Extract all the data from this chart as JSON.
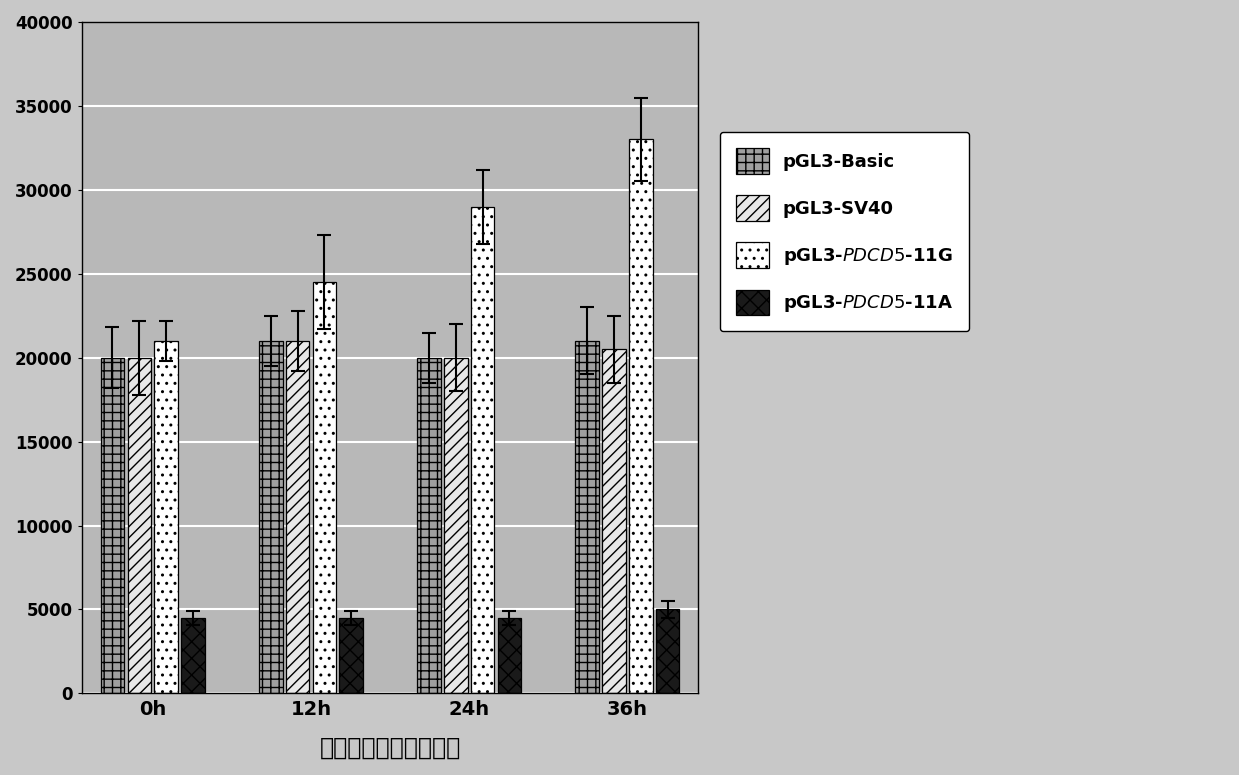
{
  "categories": [
    "0h",
    "12h",
    "24h",
    "36h"
  ],
  "series": [
    {
      "label": "pGL3-Basic",
      "values": [
        20000,
        21000,
        20000,
        21000
      ],
      "errors": [
        1800,
        1500,
        1500,
        2000
      ],
      "hatch": "++",
      "facecolor": "#a0a0a0",
      "edgecolor": "#000000"
    },
    {
      "label": "pGL3-SV40",
      "values": [
        20000,
        21000,
        20000,
        20500
      ],
      "errors": [
        2200,
        1800,
        2000,
        2000
      ],
      "hatch": "///",
      "facecolor": "#e8e8e8",
      "edgecolor": "#000000"
    },
    {
      "label": "pGL3-PDCD5-11G",
      "values": [
        21000,
        24500,
        29000,
        33000
      ],
      "errors": [
        1200,
        2800,
        2200,
        2500
      ],
      "hatch": "..",
      "facecolor": "#ffffff",
      "edgecolor": "#000000"
    },
    {
      "label": "pGL3-PDCD5-11A",
      "values": [
        4500,
        4500,
        4500,
        5000
      ],
      "errors": [
        400,
        400,
        400,
        500
      ],
      "hatch": "xx",
      "facecolor": "#1a1a1a",
      "edgecolor": "#000000"
    }
  ],
  "ylim": [
    0,
    40000
  ],
  "yticks": [
    0,
    5000,
    10000,
    15000,
    20000,
    25000,
    30000,
    35000,
    40000
  ],
  "xlabel": "撤血清后荧光素酶活性",
  "bar_width": 0.15,
  "group_centers": [
    0,
    1,
    2,
    3
  ],
  "fig_bg": "#c8c8c8",
  "plot_bg": "#b8b8b8",
  "grid_color": "#ffffff",
  "grid_lw": 1.5
}
